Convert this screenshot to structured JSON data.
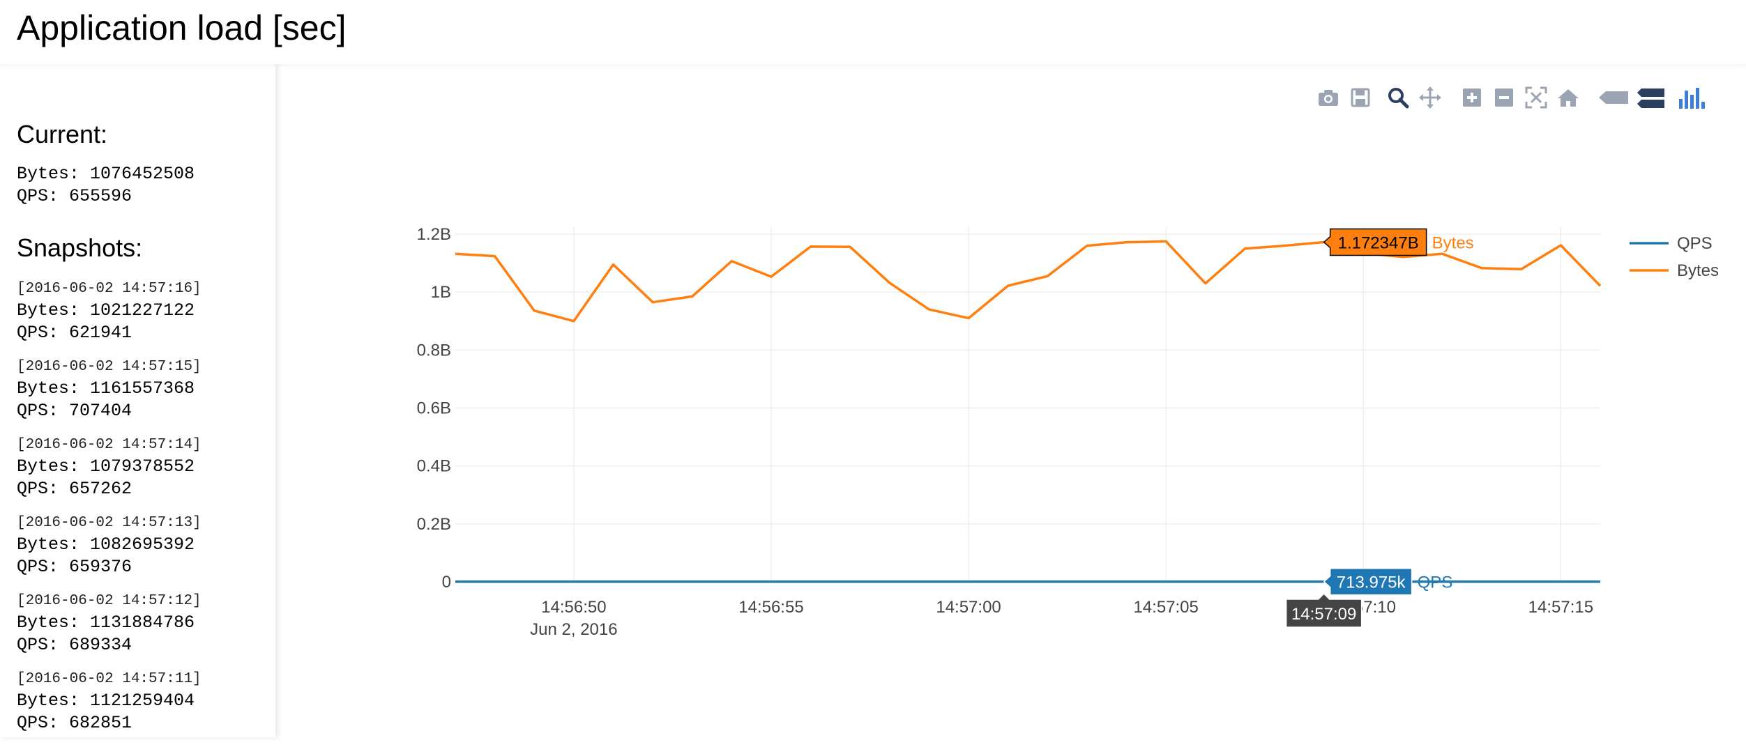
{
  "header": {
    "title": "Application load [sec]"
  },
  "sidebar": {
    "current_heading": "Current:",
    "current": {
      "bytes_line": "Bytes: 1076452508",
      "qps_line": "QPS: 655596"
    },
    "snapshots_heading": "Snapshots:",
    "snapshots": [
      {
        "timestamp": "[2016-06-02 14:57:16]",
        "bytes_line": "Bytes: 1021227122",
        "qps_line": "QPS: 621941"
      },
      {
        "timestamp": "[2016-06-02 14:57:15]",
        "bytes_line": "Bytes: 1161557368",
        "qps_line": "QPS: 707404"
      },
      {
        "timestamp": "[2016-06-02 14:57:14]",
        "bytes_line": "Bytes: 1079378552",
        "qps_line": "QPS: 657262"
      },
      {
        "timestamp": "[2016-06-02 14:57:13]",
        "bytes_line": "Bytes: 1082695392",
        "qps_line": "QPS: 659376"
      },
      {
        "timestamp": "[2016-06-02 14:57:12]",
        "bytes_line": "Bytes: 1131884786",
        "qps_line": "QPS: 689334"
      },
      {
        "timestamp": "[2016-06-02 14:57:11]",
        "bytes_line": "Bytes: 1121259404",
        "qps_line": "QPS: 682851"
      }
    ]
  },
  "modebar": {
    "buttons": [
      {
        "icon": "camera-icon"
      },
      {
        "icon": "save-icon"
      },
      {
        "icon": "zoom-icon"
      },
      {
        "icon": "pan-icon"
      },
      {
        "icon": "zoom-in-icon"
      },
      {
        "icon": "zoom-out-icon"
      },
      {
        "icon": "autoscale-icon"
      },
      {
        "icon": "reset-axes-icon"
      },
      {
        "icon": "hover-closest-icon"
      },
      {
        "icon": "hover-compare-icon"
      },
      {
        "icon": "plotly-logo-icon"
      }
    ]
  },
  "chart_data": {
    "type": "line",
    "title": "",
    "xlabel": "",
    "ylabel": "",
    "x_tick_labels": [
      "14:56:50",
      "14:56:55",
      "14:57:00",
      "14:57:05",
      "14:57:10",
      "14:57:15"
    ],
    "x_date_label": "Jun 2, 2016",
    "y_tick_labels": [
      "0",
      "0.2B",
      "0.4B",
      "0.6B",
      "0.8B",
      "1B",
      "1.2B"
    ],
    "y_ticks": [
      0,
      200000000,
      400000000,
      600000000,
      800000000,
      1000000000,
      1200000000
    ],
    "xlim": [
      "14:56:47",
      "14:57:16"
    ],
    "ylim": [
      0,
      1200000000
    ],
    "grid": true,
    "legend_position": "top-right",
    "x": [
      "14:56:47",
      "14:56:48",
      "14:56:49",
      "14:56:50",
      "14:56:51",
      "14:56:52",
      "14:56:53",
      "14:56:54",
      "14:56:55",
      "14:56:56",
      "14:56:57",
      "14:56:58",
      "14:56:59",
      "14:57:00",
      "14:57:01",
      "14:57:02",
      "14:57:03",
      "14:57:04",
      "14:57:05",
      "14:57:06",
      "14:57:07",
      "14:57:08",
      "14:57:09",
      "14:57:10",
      "14:57:11",
      "14:57:12",
      "14:57:13",
      "14:57:14",
      "14:57:15",
      "14:57:16"
    ],
    "series": [
      {
        "name": "QPS",
        "color": "#1f77b4",
        "values": [
          690000,
          685000,
          570000,
          548000,
          668000,
          588000,
          600000,
          675000,
          642000,
          705000,
          705000,
          628000,
          570000,
          552000,
          622000,
          643000,
          706000,
          712000,
          714000,
          626000,
          700000,
          706000,
          713975,
          690000,
          682851,
          689334,
          659376,
          657262,
          707404,
          621941
        ]
      },
      {
        "name": "Bytes",
        "color": "#ff7f0e",
        "values": [
          1132000000,
          1124000000,
          936000000,
          900000000,
          1095000000,
          965000000,
          985000000,
          1107000000,
          1053000000,
          1157000000,
          1156000000,
          1032000000,
          940000000,
          910000000,
          1022000000,
          1055000000,
          1160000000,
          1172000000,
          1175000000,
          1030000000,
          1150000000,
          1160000000,
          1172347000,
          1134000000,
          1121259404,
          1131884786,
          1082695392,
          1079378552,
          1161557368,
          1021227122
        ]
      }
    ],
    "hover": {
      "x_label": "14:57:09",
      "bytes_value": "1.172347B",
      "bytes_name": "Bytes",
      "qps_value": "713.975k",
      "qps_name": "QPS"
    }
  }
}
